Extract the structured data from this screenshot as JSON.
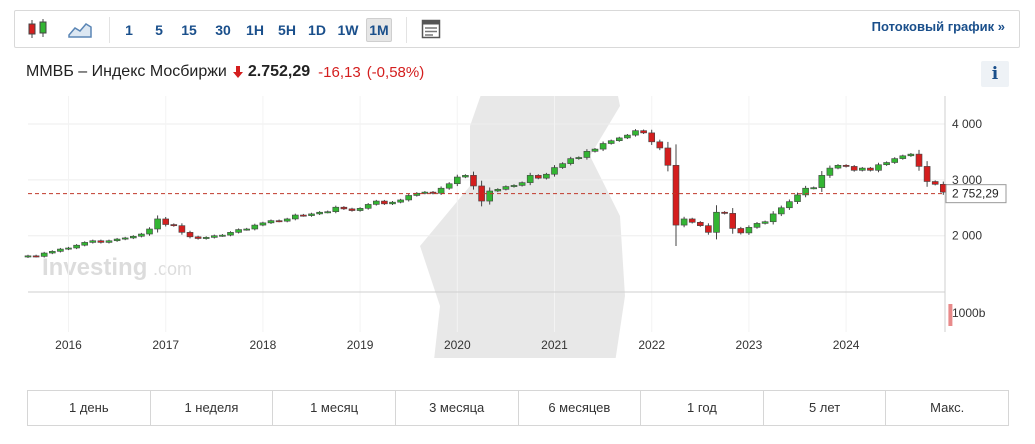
{
  "toolbar": {
    "icons": [
      "candlestick-icon",
      "area-chart-icon",
      "document-icon"
    ],
    "timeframes": [
      "1",
      "5",
      "15",
      "30",
      "1H",
      "5H",
      "1D",
      "1W",
      "1M"
    ],
    "active_timeframe": "1M",
    "stream_link": "Потоковый график »"
  },
  "header": {
    "name": "ММВБ – Индекс Мосбиржи",
    "price": "2.752,29",
    "change": "-16,13",
    "change_pct": "(-0,58%)",
    "down_color": "#d41e1e",
    "info_label": "i"
  },
  "chart_data": {
    "type": "candlestick",
    "interval": "1M",
    "x_ticks": [
      "2016",
      "2017",
      "2018",
      "2019",
      "2020",
      "2021",
      "2022",
      "2023",
      "2024"
    ],
    "y_ticks": [
      "4 000",
      "3 000",
      "2 000"
    ],
    "y_ticks_values": [
      4000,
      3000,
      2000
    ],
    "ylim": [
      1100,
      4500
    ],
    "last_value_label": "2 752,29",
    "last_value": 2752.29,
    "volume_label": "1000b",
    "up_color": "#33b533",
    "down_color": "#d41e1e",
    "series": [
      {
        "name": "",
        "start": "2015-08",
        "close": [
          1640,
          1630,
          1690,
          1720,
          1761,
          1780,
          1830,
          1880,
          1910,
          1880,
          1910,
          1940,
          1960,
          1990,
          2030,
          2120,
          2300,
          2200,
          2180,
          2060,
          1980,
          1950,
          1970,
          2000,
          2010,
          2060,
          2110,
          2120,
          2190,
          2230,
          2270,
          2260,
          2300,
          2370,
          2360,
          2390,
          2420,
          2430,
          2510,
          2480,
          2450,
          2490,
          2560,
          2620,
          2570,
          2600,
          2640,
          2720,
          2760,
          2780,
          2760,
          2850,
          2930,
          3050,
          3080,
          2890,
          2620,
          2800,
          2830,
          2880,
          2900,
          2950,
          3080,
          3030,
          3100,
          3220,
          3290,
          3380,
          3400,
          3510,
          3550,
          3650,
          3700,
          3750,
          3800,
          3880,
          3840,
          3680,
          3570,
          3260,
          2190,
          2300,
          2240,
          2180,
          2060,
          2420,
          2400,
          2130,
          2050,
          2150,
          2220,
          2250,
          2390,
          2500,
          2610,
          2730,
          2850,
          2860,
          3080,
          3210,
          3260,
          3240,
          3170,
          3210,
          3170,
          3270,
          3310,
          3380,
          3430,
          3460,
          3240,
          2970,
          2920,
          2780,
          2752
        ]
      }
    ]
  },
  "ranges": [
    "1 день",
    "1 неделя",
    "1 месяц",
    "3 месяца",
    "6 месяцев",
    "1 год",
    "5 лет",
    "Макс."
  ]
}
